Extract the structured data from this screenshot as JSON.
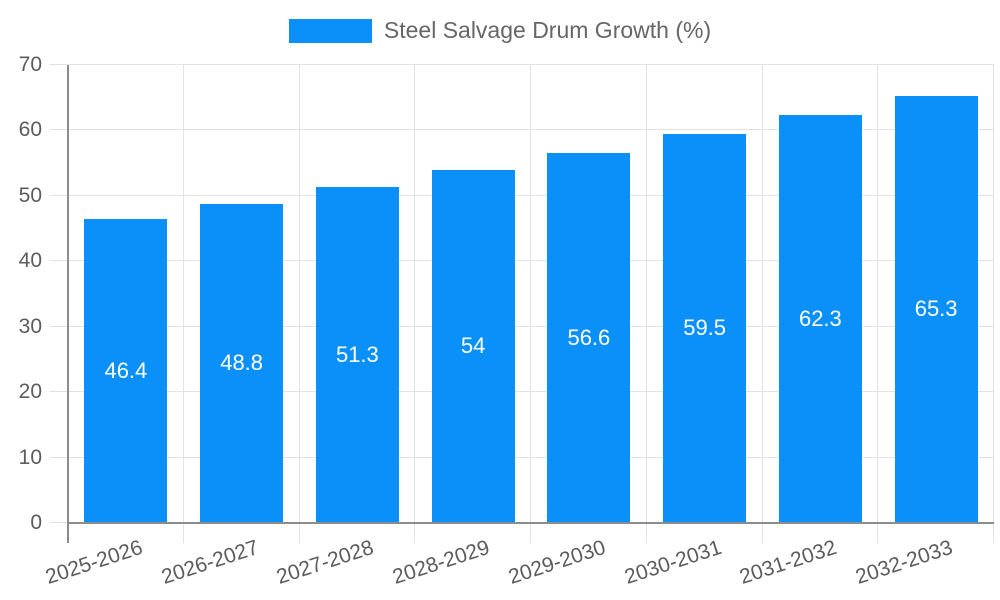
{
  "chart_data": {
    "type": "bar",
    "legend_label": "Steel Salvage Drum Growth (%)",
    "legend_position": "top-center",
    "categories": [
      "2025-2026",
      "2026-2027",
      "2027-2028",
      "2028-2029",
      "2029-2030",
      "2030-2031",
      "2031-2032",
      "2032-2033"
    ],
    "values": [
      46.4,
      48.8,
      51.3,
      54,
      56.6,
      59.5,
      62.3,
      65.3
    ],
    "value_labels": [
      "46.4",
      "48.8",
      "51.3",
      "54",
      "56.6",
      "59.5",
      "62.3",
      "65.3"
    ],
    "y_ticks": [
      0,
      10,
      20,
      30,
      40,
      50,
      60,
      70
    ],
    "ylim": [
      0,
      70
    ],
    "grid": true,
    "colors": {
      "bar": "#0a90f8",
      "axis": "#8c8c8c",
      "grid": "#e3e3e3",
      "tick_text": "#5c5c5c",
      "legend_text": "#666666",
      "value_text": "#ffffff",
      "background": "#ffffff"
    }
  }
}
